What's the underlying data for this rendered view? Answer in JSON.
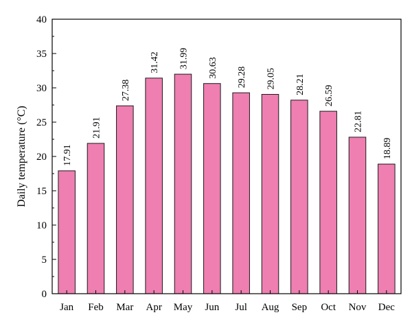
{
  "colors": {
    "bar_fill": "#EE7FB0",
    "bar_stroke": "#1a1a1a",
    "axis": "#000000"
  },
  "chart_data": {
    "type": "bar",
    "title": "",
    "xlabel": "",
    "ylabel": "Daily temperature (°C)",
    "ylim": [
      0,
      40
    ],
    "yticks": [
      0,
      5,
      10,
      15,
      20,
      25,
      30,
      35,
      40
    ],
    "grid": false,
    "legend": "none",
    "categories": [
      "Jan",
      "Feb",
      "Mar",
      "Apr",
      "May",
      "Jun",
      "Jul",
      "Aug",
      "Sep",
      "Oct",
      "Nov",
      "Dec"
    ],
    "values": [
      17.91,
      21.91,
      27.38,
      31.42,
      31.99,
      30.63,
      29.28,
      29.05,
      28.21,
      26.59,
      22.81,
      18.89
    ],
    "value_labels": [
      "17.91",
      "21.91",
      "27.38",
      "31.42",
      "31.99",
      "30.63",
      "29.28",
      "29.05",
      "28.21",
      "26.59",
      "22.81",
      "18.89"
    ]
  }
}
